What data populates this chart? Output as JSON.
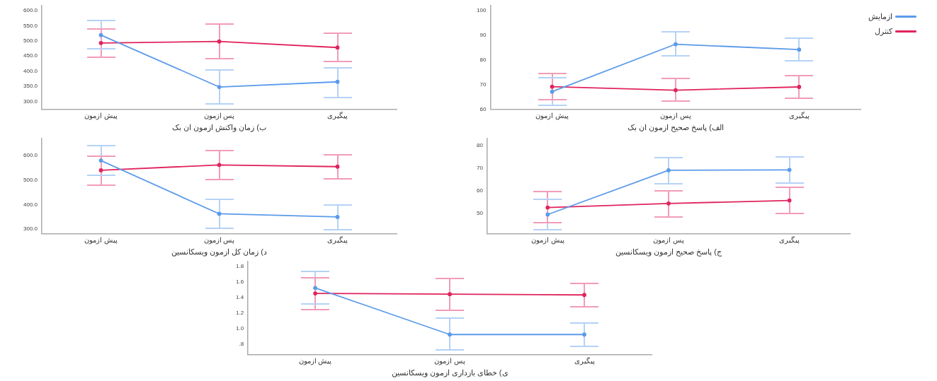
{
  "chart_data": [
    {
      "type": "line",
      "xlabel": "ب) زمان واکنش ازمون ان بک",
      "categories": [
        "پیش ازمون",
        "پس ازمون",
        "پیگیری"
      ],
      "marker": "circle",
      "ylim": [
        274,
        616
      ],
      "yticks": [
        {
          "value": 300,
          "label": "300.0"
        },
        {
          "value": 350,
          "label": "350.0"
        },
        {
          "value": 400,
          "label": "400.0"
        },
        {
          "value": 450,
          "label": "450.0"
        },
        {
          "value": 500,
          "label": "500.0"
        },
        {
          "value": 550,
          "label": "550.0"
        },
        {
          "value": 600,
          "label": "600.0"
        }
      ],
      "series": [
        {
          "color": "#5b9bea",
          "values": [
            519,
            348,
            365
          ],
          "errors": [
            [
              473,
              568
            ],
            [
              292,
              404
            ],
            [
              314,
              412
            ]
          ]
        },
        {
          "color": "#e0245e",
          "values": [
            493,
            498,
            478
          ],
          "errors": [
            [
              446,
              540
            ],
            [
              442,
              556
            ],
            [
              431,
              526
            ]
          ]
        }
      ]
    },
    {
      "type": "line",
      "xlabel": "الف) پاسخ صحیح ازمون ان بک",
      "categories": [
        "پیش ازمون",
        "پس ازمون",
        "پیگیری"
      ],
      "marker": "circle",
      "legend": "top right",
      "ylim": [
        60,
        102
      ],
      "yticks": [
        60,
        70,
        80,
        90,
        100
      ],
      "series": [
        {
          "name": "ازمایش",
          "color": "#5b9bea",
          "values": [
            67.2,
            86.4,
            84.2
          ],
          "errors": [
            [
              61.8,
              72.8
            ],
            [
              81.8,
              91.3
            ],
            [
              79.7,
              88.7
            ]
          ]
        },
        {
          "name": "کنترل",
          "color": "#e0245e",
          "values": [
            69.2,
            67.8,
            69.1
          ],
          "errors": [
            [
              63.9,
              74.6
            ],
            [
              63.3,
              72.5
            ],
            [
              64.6,
              73.7
            ]
          ]
        }
      ]
    },
    {
      "type": "line",
      "xlabel": "د) زمان کل ازمون ویسکانسین",
      "categories": [
        "پیش ازمون",
        "پس ازمون",
        "پیگیری"
      ],
      "marker": "circle",
      "ylim": [
        280,
        670
      ],
      "yticks": [
        {
          "value": 300,
          "label": "300.0"
        },
        {
          "value": 400,
          "label": "400.0"
        },
        {
          "value": 500,
          "label": "500.0"
        },
        {
          "value": 600,
          "label": "600.0"
        }
      ],
      "series": [
        {
          "color": "#5b9bea",
          "values": [
            580,
            362,
            349
          ],
          "errors": [
            [
              521,
              640
            ],
            [
              303,
              421
            ],
            [
              298,
              399
            ]
          ]
        },
        {
          "color": "#e0245e",
          "values": [
            540,
            562,
            555
          ],
          "errors": [
            [
              479,
              598
            ],
            [
              501,
              621
            ],
            [
              504,
              604
            ]
          ]
        }
      ]
    },
    {
      "type": "line",
      "xlabel": "ج) پاسخ صحیح ازمون ویسکانسین",
      "categories": [
        "پیش ازمون",
        "پس ازمون",
        "پیگیری"
      ],
      "marker": "circle",
      "ylim": [
        41,
        83
      ],
      "yticks": [
        50,
        60,
        70,
        80
      ],
      "series": [
        {
          "color": "#5b9bea",
          "values": [
            49.5,
            69.0,
            69.2
          ],
          "errors": [
            [
              42.7,
              56.3
            ],
            [
              63.2,
              74.7
            ],
            [
              63.4,
              74.8
            ]
          ]
        },
        {
          "color": "#e0245e",
          "values": [
            52.6,
            54.4,
            55.7
          ],
          "errors": [
            [
              45.8,
              59.6
            ],
            [
              48.5,
              60.0
            ],
            [
              49.9,
              61.4
            ]
          ]
        }
      ]
    },
    {
      "type": "line",
      "xlabel": "ی) خطای بازداری ازمون ویسکانسین",
      "categories": [
        "پیش ازمون",
        "پس ازمون",
        "پیگیری"
      ],
      "marker": "circle",
      "ylim": [
        0.66,
        1.86
      ],
      "yticks": [
        {
          "value": 0.8,
          "label": ".8"
        },
        {
          "value": 1,
          "label": "1.0"
        },
        1.2,
        1.4,
        1.6,
        1.8
      ],
      "series": [
        {
          "color": "#5b9bea",
          "values": [
            1.52,
            0.92,
            0.92
          ],
          "errors": [
            [
              1.31,
              1.73
            ],
            [
              0.72,
              1.13
            ],
            [
              0.77,
              1.07
            ]
          ]
        },
        {
          "color": "#e0245e",
          "values": [
            1.45,
            1.44,
            1.43
          ],
          "errors": [
            [
              1.24,
              1.65
            ],
            [
              1.23,
              1.64
            ],
            [
              1.28,
              1.58
            ]
          ]
        }
      ]
    }
  ]
}
